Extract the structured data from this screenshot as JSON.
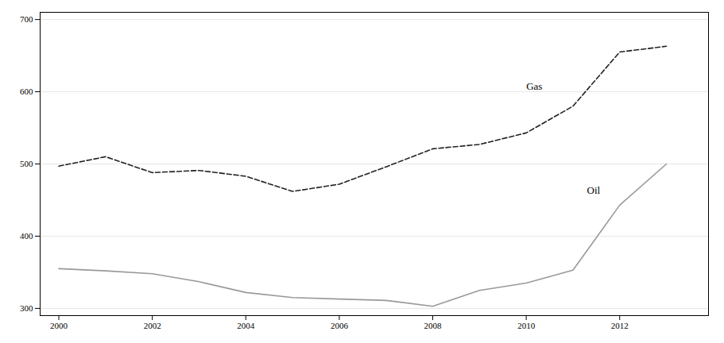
{
  "chart_data": {
    "type": "line",
    "x": [
      2000,
      2001,
      2002,
      2003,
      2004,
      2005,
      2006,
      2007,
      2008,
      2009,
      2010,
      2011,
      2012,
      2013
    ],
    "series": [
      {
        "name": "Gas",
        "color": "#222222",
        "line_style": "dashed",
        "values": [
          497,
          510,
          488,
          491,
          483,
          462,
          472,
          496,
          521,
          527,
          543,
          580,
          655,
          663
        ]
      },
      {
        "name": "Oil",
        "color": "#999999",
        "line_style": "solid",
        "values": [
          355,
          352,
          348,
          337,
          322,
          315,
          313,
          311,
          303,
          325,
          335,
          353,
          443,
          500
        ]
      }
    ],
    "annotations": [
      {
        "text": "Gas",
        "x": 2010.0,
        "y": 607
      },
      {
        "text": "Oil",
        "x": 2011.3,
        "y": 463
      }
    ],
    "xlim": [
      1999.6,
      2013.9
    ],
    "ylim": [
      290,
      710
    ],
    "xticks": [
      2000,
      2002,
      2004,
      2006,
      2008,
      2010,
      2012
    ],
    "yticks": [
      300,
      400,
      500,
      600,
      700
    ],
    "grid": true
  }
}
